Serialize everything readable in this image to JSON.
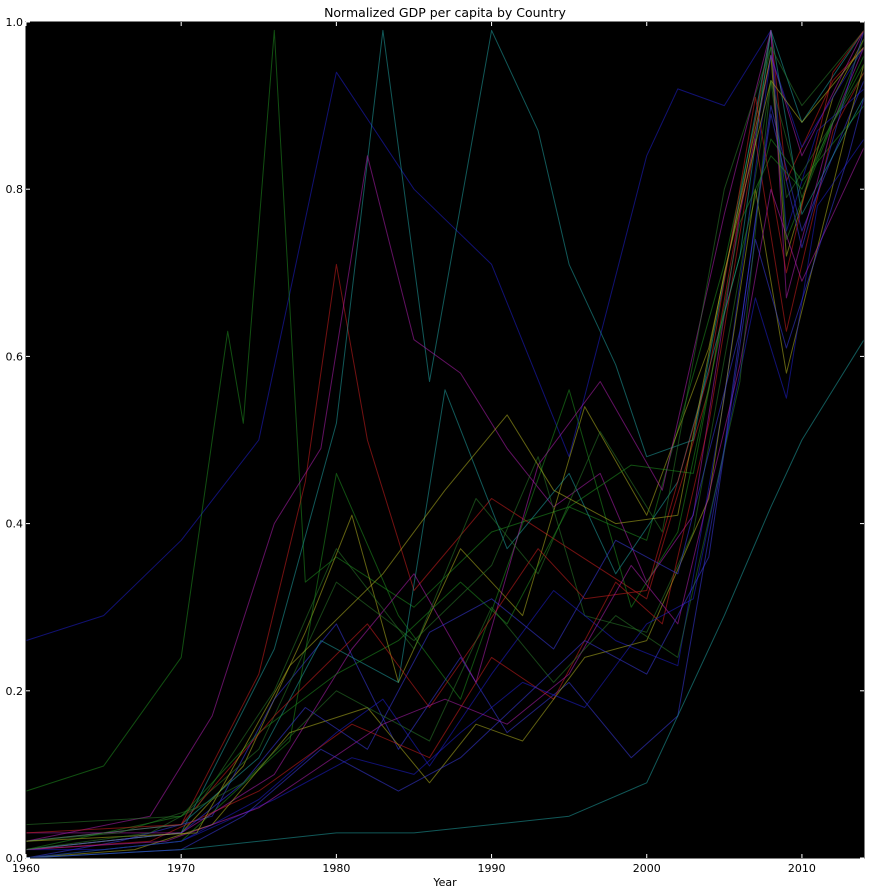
{
  "chart_data": {
    "type": "line",
    "title": "Normalized GDP per capita by Country",
    "xlabel": "Year",
    "ylabel": "",
    "xlim": [
      1960,
      2014
    ],
    "ylim": [
      0,
      1.0
    ],
    "x_ticks": [
      1960,
      1970,
      1980,
      1990,
      2000,
      2010
    ],
    "y_ticks": [
      0.0,
      0.2,
      0.4,
      0.6,
      0.8,
      1.0
    ],
    "x_tick_labels": [
      "1960",
      "1970",
      "1980",
      "1990",
      "2000",
      "2010"
    ],
    "y_tick_labels": [
      "0.0",
      "0.2",
      "0.4",
      "0.6",
      "0.8",
      "1.0"
    ],
    "plot_background": "#000000",
    "grid": false,
    "legend": "none",
    "series_opacity": 0.55,
    "colors": [
      "#1f1fd0",
      "#1f8f1f",
      "#d01f1f",
      "#1fa0a0",
      "#b01fb0",
      "#b0b01f",
      "#3a3ae0",
      "#2a7a2a"
    ],
    "series": [
      {
        "x": [
          1960,
          1965,
          1970,
          1975,
          1980,
          1985,
          1990,
          1995,
          2000,
          2002,
          2005,
          2008,
          2009,
          2011,
          2014
        ],
        "values": [
          0.26,
          0.29,
          0.38,
          0.5,
          0.94,
          0.8,
          0.71,
          0.48,
          0.84,
          0.92,
          0.9,
          0.99,
          0.75,
          0.87,
          0.92
        ]
      },
      {
        "x": [
          1960,
          1965,
          1970,
          1973,
          1974,
          1976,
          1978,
          1980,
          1985,
          1990,
          1995,
          2000,
          2005,
          2008,
          2009,
          2012,
          2014
        ],
        "values": [
          0.08,
          0.11,
          0.24,
          0.63,
          0.52,
          0.99,
          0.33,
          0.36,
          0.3,
          0.39,
          0.42,
          0.38,
          0.71,
          0.97,
          0.74,
          0.88,
          0.95
        ]
      },
      {
        "x": [
          1960,
          1970,
          1975,
          1978,
          1980,
          1982,
          1985,
          1990,
          1995,
          2000,
          2004,
          2008,
          2009,
          2012,
          2014
        ],
        "values": [
          0.02,
          0.04,
          0.22,
          0.45,
          0.71,
          0.5,
          0.32,
          0.43,
          0.37,
          0.31,
          0.56,
          0.99,
          0.81,
          0.93,
          0.97
        ]
      },
      {
        "x": [
          1960,
          1970,
          1976,
          1980,
          1983,
          1986,
          1990,
          1993,
          1995,
          1998,
          2000,
          2003,
          2006,
          2008,
          2010,
          2014
        ],
        "values": [
          0.01,
          0.03,
          0.25,
          0.52,
          0.99,
          0.57,
          0.99,
          0.87,
          0.71,
          0.59,
          0.48,
          0.5,
          0.79,
          0.99,
          0.88,
          0.99
        ]
      },
      {
        "x": [
          1960,
          1968,
          1972,
          1976,
          1979,
          1982,
          1985,
          1988,
          1991,
          1994,
          1997,
          2000,
          2003,
          2006,
          2008,
          2010,
          2014
        ],
        "values": [
          0.02,
          0.05,
          0.17,
          0.4,
          0.49,
          0.84,
          0.62,
          0.58,
          0.49,
          0.42,
          0.46,
          0.33,
          0.41,
          0.77,
          0.96,
          0.84,
          0.99
        ]
      },
      {
        "x": [
          1960,
          1970,
          1974,
          1978,
          1981,
          1984,
          1988,
          1992,
          1996,
          2000,
          2004,
          2008,
          2009,
          2012,
          2014
        ],
        "values": [
          0.01,
          0.03,
          0.11,
          0.27,
          0.41,
          0.21,
          0.37,
          0.29,
          0.54,
          0.41,
          0.61,
          0.96,
          0.72,
          0.91,
          0.98
        ]
      },
      {
        "x": [
          1960,
          1966,
          1972,
          1976,
          1980,
          1984,
          1988,
          1991,
          1995,
          1999,
          2002,
          2005,
          2008,
          2010,
          2014
        ],
        "values": [
          0.0,
          0.02,
          0.05,
          0.19,
          0.28,
          0.13,
          0.24,
          0.15,
          0.21,
          0.12,
          0.17,
          0.49,
          0.9,
          0.75,
          0.93
        ]
      },
      {
        "x": [
          1960,
          1970,
          1975,
          1980,
          1985,
          1990,
          1993,
          1996,
          2000,
          2003,
          2006,
          2008,
          2009,
          2011,
          2014
        ],
        "values": [
          0.04,
          0.05,
          0.13,
          0.33,
          0.26,
          0.35,
          0.48,
          0.29,
          0.27,
          0.39,
          0.7,
          0.93,
          0.79,
          0.85,
          0.94
        ]
      },
      {
        "x": [
          1960,
          1965,
          1970,
          1975,
          1980,
          1983,
          1986,
          1990,
          1994,
          1998,
          2002,
          2005,
          2008,
          2010,
          2014
        ],
        "values": [
          0.01,
          0.01,
          0.02,
          0.07,
          0.15,
          0.19,
          0.11,
          0.22,
          0.32,
          0.26,
          0.23,
          0.55,
          0.96,
          0.85,
          0.97
        ]
      },
      {
        "x": [
          1960,
          1970,
          1977,
          1980,
          1984,
          1988,
          1992,
          1995,
          1999,
          2002,
          2005,
          2008,
          2010,
          2014
        ],
        "values": [
          0.0,
          0.02,
          0.14,
          0.46,
          0.29,
          0.19,
          0.4,
          0.56,
          0.3,
          0.39,
          0.65,
          0.86,
          0.81,
          0.9
        ]
      },
      {
        "x": [
          1960,
          1968,
          1975,
          1981,
          1986,
          1990,
          1994,
          1998,
          2001,
          2004,
          2007,
          2009,
          2012,
          2014
        ],
        "values": [
          0.01,
          0.02,
          0.08,
          0.16,
          0.12,
          0.24,
          0.19,
          0.33,
          0.28,
          0.52,
          0.86,
          0.63,
          0.87,
          0.94
        ]
      },
      {
        "x": [
          1960,
          1970,
          1975,
          1979,
          1984,
          1987,
          1991,
          1995,
          1998,
          2002,
          2006,
          2008,
          2010,
          2014
        ],
        "values": [
          0.02,
          0.04,
          0.12,
          0.26,
          0.21,
          0.56,
          0.37,
          0.46,
          0.34,
          0.45,
          0.72,
          0.99,
          0.77,
          0.91
        ]
      },
      {
        "x": [
          1960,
          1970,
          1976,
          1981,
          1985,
          1989,
          1993,
          1997,
          2001,
          2005,
          2008,
          2009,
          2012,
          2014
        ],
        "values": [
          0.03,
          0.03,
          0.1,
          0.25,
          0.34,
          0.21,
          0.47,
          0.57,
          0.44,
          0.77,
          0.99,
          0.67,
          0.88,
          0.97
        ]
      },
      {
        "x": [
          1960,
          1967,
          1972,
          1977,
          1982,
          1986,
          1989,
          1992,
          1996,
          2000,
          2004,
          2007,
          2009,
          2013,
          2014
        ],
        "values": [
          0.0,
          0.01,
          0.04,
          0.15,
          0.18,
          0.09,
          0.16,
          0.14,
          0.24,
          0.26,
          0.43,
          0.8,
          0.58,
          0.88,
          0.95
        ]
      },
      {
        "x": [
          1960,
          1970,
          1974,
          1978,
          1982,
          1986,
          1990,
          1994,
          1998,
          2002,
          2006,
          2008,
          2010,
          2014
        ],
        "values": [
          0.01,
          0.03,
          0.09,
          0.18,
          0.13,
          0.27,
          0.31,
          0.25,
          0.38,
          0.34,
          0.63,
          0.89,
          0.73,
          0.99
        ]
      },
      {
        "x": [
          1960,
          1966,
          1971,
          1976,
          1980,
          1985,
          1989,
          1993,
          1997,
          2001,
          2005,
          2008,
          2010,
          2014
        ],
        "values": [
          0.02,
          0.03,
          0.06,
          0.2,
          0.37,
          0.25,
          0.43,
          0.34,
          0.51,
          0.39,
          0.8,
          0.97,
          0.9,
          0.99
        ]
      },
      {
        "x": [
          1960,
          1970,
          1976,
          1981,
          1985,
          1988,
          1992,
          1996,
          2000,
          2003,
          2007,
          2009,
          2011,
          2014
        ],
        "values": [
          0.0,
          0.02,
          0.07,
          0.12,
          0.1,
          0.15,
          0.21,
          0.18,
          0.28,
          0.31,
          0.67,
          0.55,
          0.78,
          0.86
        ]
      },
      {
        "x": [
          1960,
          1970,
          1975,
          1980,
          1984,
          1988,
          1991,
          1995,
          1999,
          2003,
          2006,
          2008,
          2010,
          2014
        ],
        "values": [
          0.01,
          0.05,
          0.15,
          0.22,
          0.26,
          0.33,
          0.28,
          0.42,
          0.47,
          0.46,
          0.76,
          0.84,
          0.8,
          0.96
        ]
      },
      {
        "x": [
          1960,
          1970,
          1976,
          1982,
          1986,
          1989,
          1993,
          1996,
          2000,
          2004,
          2007,
          2009,
          2012,
          2014
        ],
        "values": [
          0.03,
          0.04,
          0.17,
          0.28,
          0.18,
          0.26,
          0.37,
          0.31,
          0.32,
          0.58,
          0.91,
          0.7,
          0.94,
          0.99
        ]
      },
      {
        "x": [
          1960,
          1970,
          1980,
          1985,
          1990,
          1995,
          2000,
          2005,
          2008,
          2010,
          2014
        ],
        "values": [
          0.0,
          0.01,
          0.03,
          0.03,
          0.04,
          0.05,
          0.09,
          0.29,
          0.42,
          0.5,
          0.62
        ]
      },
      {
        "x": [
          1960,
          1969,
          1975,
          1979,
          1983,
          1987,
          1991,
          1995,
          1999,
          2002,
          2006,
          2008,
          2010,
          2014
        ],
        "values": [
          0.01,
          0.02,
          0.06,
          0.11,
          0.16,
          0.19,
          0.16,
          0.22,
          0.35,
          0.28,
          0.59,
          0.8,
          0.69,
          0.85
        ]
      },
      {
        "x": [
          1960,
          1971,
          1977,
          1983,
          1987,
          1991,
          1994,
          1998,
          2002,
          2005,
          2008,
          2010,
          2014
        ],
        "values": [
          0.02,
          0.03,
          0.23,
          0.34,
          0.44,
          0.53,
          0.44,
          0.4,
          0.41,
          0.7,
          0.93,
          0.88,
          0.97
        ]
      },
      {
        "x": [
          1960,
          1970,
          1974,
          1979,
          1984,
          1988,
          1992,
          1996,
          2000,
          2004,
          2007,
          2009,
          2013,
          2014
        ],
        "values": [
          0.0,
          0.01,
          0.05,
          0.13,
          0.08,
          0.12,
          0.19,
          0.26,
          0.22,
          0.36,
          0.74,
          0.61,
          0.84,
          0.91
        ]
      },
      {
        "x": [
          1960,
          1968,
          1974,
          1980,
          1986,
          1990,
          1994,
          1998,
          2002,
          2006,
          2008,
          2010,
          2014
        ],
        "values": [
          0.01,
          0.03,
          0.09,
          0.2,
          0.14,
          0.3,
          0.21,
          0.29,
          0.24,
          0.57,
          0.93,
          0.79,
          0.98
        ]
      }
    ]
  }
}
